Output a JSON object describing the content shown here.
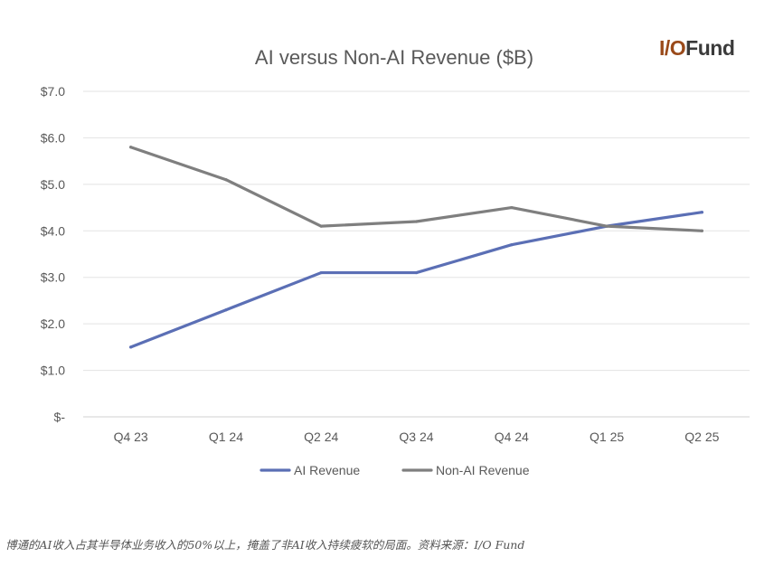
{
  "logo": {
    "prefix": "I/O",
    "suffix": "Fund",
    "prefix_color": "#9a4a1a",
    "suffix_color": "#3b3b3b"
  },
  "caption": "博通的AI收入占其半导体业务收入的50%以上，掩盖了非AI收入持续疲软的局面。资料来源：I/O Fund",
  "chart_data": {
    "type": "line",
    "title": "AI versus Non-AI Revenue ($B)",
    "xlabel": "",
    "ylabel": "",
    "categories": [
      "Q4 23",
      "Q1 24",
      "Q2 24",
      "Q3 24",
      "Q4 24",
      "Q1 25",
      "Q2 25"
    ],
    "ylim": [
      0,
      7
    ],
    "yticks": [
      0,
      1,
      2,
      3,
      4,
      5,
      6,
      7
    ],
    "ytick_labels": [
      "$-",
      "$1.0",
      "$2.0",
      "$3.0",
      "$4.0",
      "$5.0",
      "$6.0",
      "$7.0"
    ],
    "grid": true,
    "legend_position": "bottom",
    "series": [
      {
        "name": "AI Revenue",
        "color": "#5b6fb5",
        "values": [
          1.5,
          2.3,
          3.1,
          3.1,
          3.7,
          4.1,
          4.4
        ]
      },
      {
        "name": "Non-AI Revenue",
        "color": "#7f7f7f",
        "values": [
          5.8,
          5.1,
          4.1,
          4.2,
          4.5,
          4.1,
          4.0
        ]
      }
    ]
  }
}
